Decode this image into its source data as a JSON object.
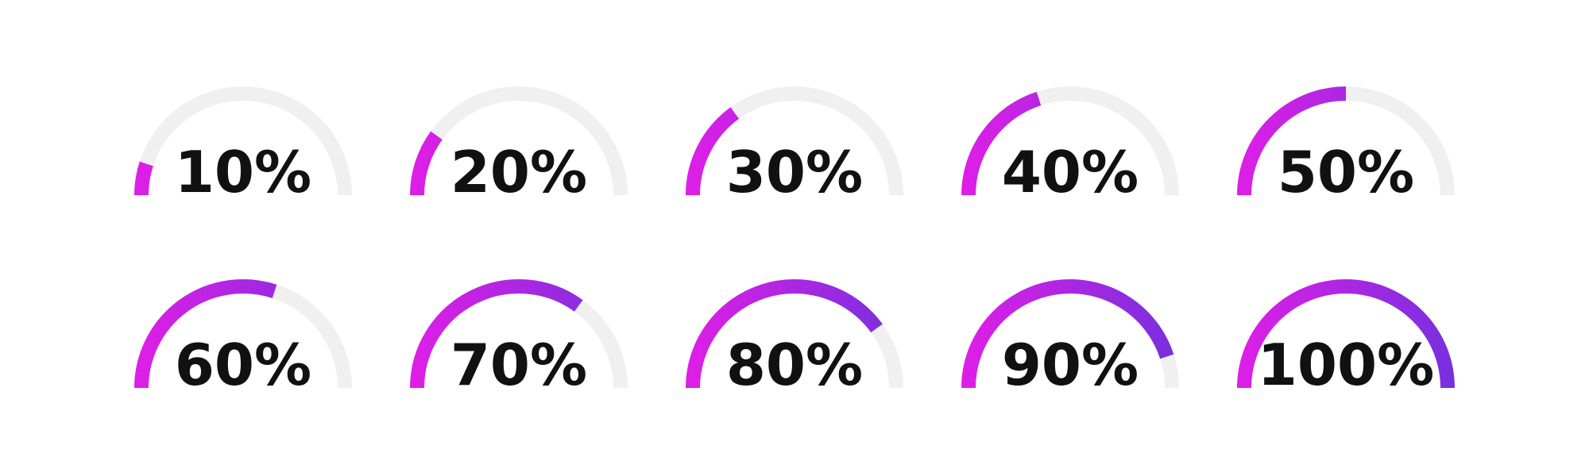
{
  "chart_data": {
    "type": "gauge",
    "values": [
      10,
      20,
      30,
      40,
      50,
      60,
      70,
      80,
      90,
      100
    ],
    "value_labels": [
      "10%",
      "20%",
      "30%",
      "40%",
      "50%",
      "60%",
      "70%",
      "80%",
      "90%",
      "100%"
    ],
    "ylim": [
      0,
      100
    ],
    "colors": [
      "#dc1fe6",
      "#7a2fde"
    ],
    "track_color": "#f0f0f0"
  }
}
